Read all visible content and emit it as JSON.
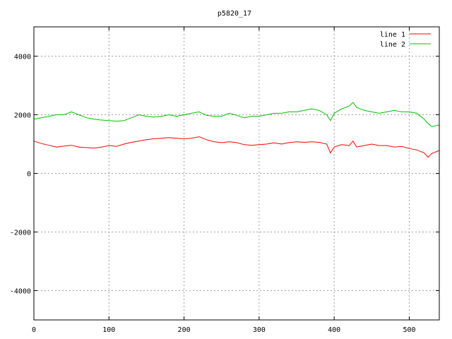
{
  "chart_data": {
    "type": "line",
    "title": "p5820_17",
    "xlabel": "",
    "ylabel": "",
    "xlim": [
      0,
      540
    ],
    "ylim": [
      -5000,
      5000
    ],
    "x_ticks": [
      0,
      100,
      200,
      300,
      400,
      500
    ],
    "y_ticks": [
      -4000,
      -2000,
      0,
      2000,
      4000
    ],
    "x_tick_labels": [
      "0",
      "100",
      "200",
      "300",
      "400",
      "500"
    ],
    "y_tick_labels": [
      "-4000",
      "-2000",
      "0",
      "2000",
      "4000"
    ],
    "grid": true,
    "legend_position": "top-right",
    "series": [
      {
        "name": "line 1",
        "color": "#ff0000",
        "x": [
          0,
          10,
          20,
          30,
          40,
          50,
          60,
          70,
          80,
          90,
          100,
          110,
          120,
          130,
          140,
          150,
          160,
          170,
          180,
          190,
          200,
          210,
          220,
          230,
          240,
          250,
          260,
          270,
          280,
          290,
          300,
          310,
          320,
          330,
          340,
          350,
          360,
          370,
          380,
          390,
          395,
          400,
          410,
          420,
          425,
          430,
          440,
          450,
          460,
          470,
          480,
          490,
          500,
          510,
          520,
          525,
          530,
          540
        ],
        "y": [
          1100,
          1020,
          960,
          900,
          930,
          960,
          900,
          880,
          860,
          900,
          950,
          920,
          1000,
          1060,
          1100,
          1150,
          1180,
          1200,
          1220,
          1200,
          1180,
          1200,
          1250,
          1150,
          1080,
          1050,
          1080,
          1050,
          980,
          960,
          980,
          1000,
          1040,
          1000,
          1050,
          1080,
          1060,
          1080,
          1060,
          1000,
          700,
          900,
          980,
          950,
          1100,
          900,
          950,
          1000,
          950,
          950,
          900,
          920,
          850,
          800,
          700,
          550,
          680,
          780
        ]
      },
      {
        "name": "line 2",
        "color": "#00c000",
        "x": [
          0,
          10,
          20,
          30,
          40,
          50,
          60,
          70,
          80,
          90,
          100,
          110,
          120,
          130,
          140,
          150,
          160,
          170,
          180,
          190,
          200,
          210,
          220,
          230,
          240,
          250,
          260,
          270,
          280,
          290,
          300,
          310,
          320,
          330,
          340,
          350,
          360,
          370,
          380,
          390,
          395,
          400,
          410,
          420,
          425,
          430,
          440,
          450,
          460,
          470,
          480,
          490,
          500,
          510,
          520,
          525,
          530,
          540
        ],
        "y": [
          1850,
          1900,
          1950,
          2000,
          2000,
          2100,
          2000,
          1900,
          1850,
          1820,
          1800,
          1780,
          1800,
          1900,
          2000,
          1950,
          1920,
          1950,
          2000,
          1950,
          2000,
          2050,
          2100,
          1980,
          1950,
          1950,
          2050,
          1980,
          1900,
          1950,
          1950,
          2000,
          2050,
          2050,
          2100,
          2100,
          2150,
          2200,
          2150,
          2000,
          1800,
          2050,
          2200,
          2300,
          2420,
          2250,
          2150,
          2100,
          2050,
          2100,
          2150,
          2100,
          2100,
          2050,
          1850,
          1700,
          1600,
          1650
        ]
      }
    ]
  }
}
